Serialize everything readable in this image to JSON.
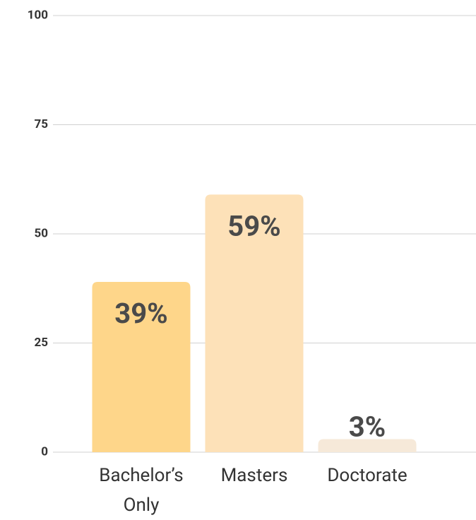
{
  "chart_data": {
    "type": "bar",
    "categories": [
      "Bachelor’s Only",
      "Masters",
      "Doctorate"
    ],
    "values": [
      39,
      59,
      3
    ],
    "value_labels": [
      "39%",
      "59%",
      "3%"
    ],
    "colors": [
      "#fed68a",
      "#fde1b8",
      "#f6e9d9"
    ],
    "ylim": [
      0,
      100
    ],
    "yticks": [
      0,
      25,
      50,
      75,
      100
    ],
    "grid": true
  }
}
